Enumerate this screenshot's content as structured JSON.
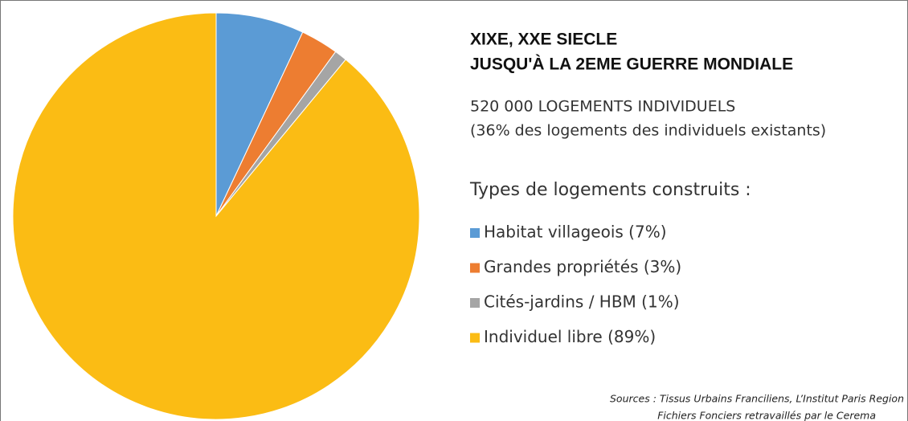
{
  "chart_data": {
    "type": "pie",
    "title": [
      "XIXE, XXE SIECLE",
      "JUSQU'À LA 2EME GUERRE MONDIALE"
    ],
    "subtitle": [
      "520 000 LOGEMENTS INDIVIDUELS",
      "(36% des logements des individuels existants)"
    ],
    "legend_title": "Types de logements construits :",
    "categories": [
      "Habitat villageois (7%)",
      "Grandes propriétés (3%)",
      "Cités-jardins / HBM (1%)",
      "Individuel libre (89%)"
    ],
    "values": [
      7,
      3,
      1,
      89
    ],
    "colors": [
      "#5b9bd5",
      "#ed7d31",
      "#a5a5a5",
      "#fbbc14"
    ],
    "sources": [
      "Sources : Tissus Urbains Franciliens, L’Institut Paris Region",
      "Fichiers Fonciers retravaillés par le Cerema"
    ]
  }
}
